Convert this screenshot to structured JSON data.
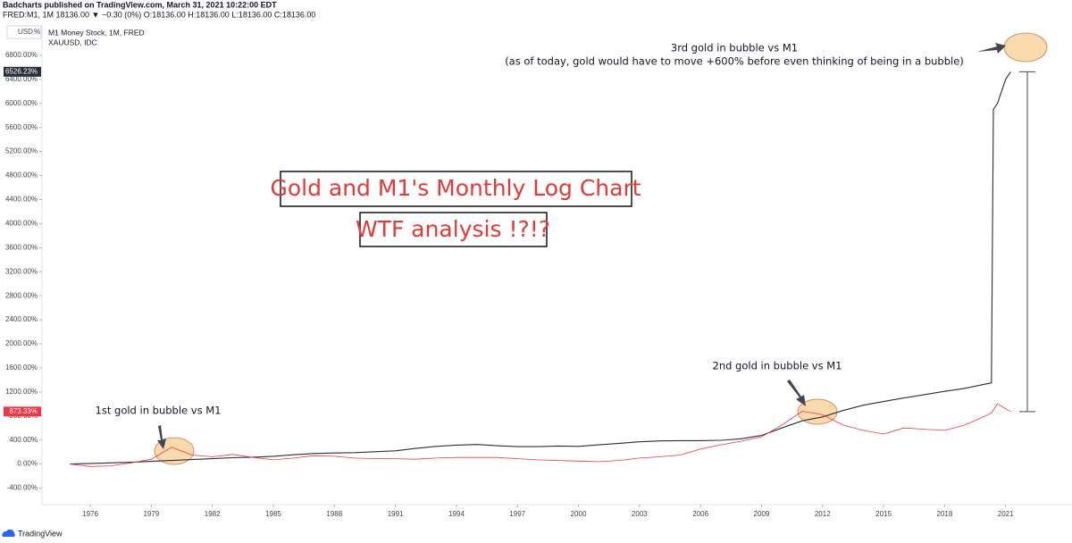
{
  "header": {
    "publisher": "Badcharts published on TradingView.com, March 31, 2021 10:22:00 EDT",
    "symbol_line": "FRED:M1, 1M 18136.00 ▼ −0.30 (0%) O:18136.00 H:18136.00 L:18136.00 C:18136.00",
    "currency": "USD",
    "scale_mode": "%"
  },
  "footer": {
    "brand": "TradingView"
  },
  "chart_data": {
    "type": "line",
    "title": "Gold and M1's Monthly Log Chart",
    "subtitle": "WTF analysis !?!?",
    "annotations": [
      "3rd gold in bubble vs M1",
      "(as of today, gold would have to move +600% before even thinking of being in a bubble)",
      "2nd gold in bubble vs M1",
      "1st gold in bubble vs M1"
    ],
    "x": [
      1975,
      1976,
      1977,
      1978,
      1979,
      1980,
      1981,
      1982,
      1983,
      1984,
      1985,
      1986,
      1987,
      1988,
      1989,
      1990,
      1991,
      1992,
      1993,
      1994,
      1995,
      1996,
      1997,
      1998,
      1999,
      2000,
      2001,
      2002,
      2003,
      2004,
      2005,
      2006,
      2007,
      2008,
      2009,
      2010,
      2011,
      2012,
      2013,
      2014,
      2015,
      2016,
      2017,
      2018,
      2019,
      2020,
      2020.3,
      2020.4,
      2020.6,
      2021,
      2021.25
    ],
    "series": [
      {
        "name": "M1 Money Stock, 1M, FRED",
        "color": "#2a2e39",
        "end_label": "6526.23%",
        "values": [
          0,
          10,
          20,
          30,
          45,
          60,
          75,
          90,
          105,
          115,
          130,
          155,
          175,
          185,
          190,
          205,
          220,
          260,
          295,
          315,
          325,
          305,
          290,
          290,
          300,
          295,
          320,
          345,
          370,
          385,
          390,
          390,
          395,
          420,
          475,
          600,
          720,
          785,
          890,
          980,
          1040,
          1100,
          1155,
          1210,
          1260,
          1330,
          1350,
          5900,
          6000,
          6400,
          6526.23
        ]
      },
      {
        "name": "XAUUSD, IDC",
        "color": "#f23645",
        "end_label": "873.33%",
        "values": [
          0,
          -40,
          -30,
          20,
          80,
          280,
          150,
          120,
          160,
          110,
          70,
          100,
          140,
          130,
          100,
          90,
          90,
          80,
          100,
          110,
          110,
          110,
          90,
          70,
          60,
          50,
          40,
          60,
          100,
          120,
          150,
          250,
          320,
          380,
          450,
          650,
          880,
          820,
          650,
          560,
          500,
          600,
          580,
          560,
          650,
          800,
          850,
          900,
          1000,
          920,
          873.33
        ]
      }
    ],
    "xlim": [
      1974,
      2024
    ],
    "xticks": [
      1976,
      1979,
      1982,
      1985,
      1988,
      1991,
      1994,
      1997,
      2000,
      2003,
      2006,
      2009,
      2012,
      2015,
      2018,
      2021
    ],
    "ylim": [
      -600,
      7200
    ],
    "yticks": [
      {
        "value": -400,
        "label": "-400.00%"
      },
      {
        "value": 0,
        "label": "0.00%"
      },
      {
        "value": 400,
        "label": "400.00%"
      },
      {
        "value": 800,
        "label": "800.00%"
      },
      {
        "value": 1200,
        "label": "1200.00%"
      },
      {
        "value": 1600,
        "label": "1600.00%"
      },
      {
        "value": 2000,
        "label": "2000.00%"
      },
      {
        "value": 2400,
        "label": "2400.00%"
      },
      {
        "value": 2800,
        "label": "2800.00%"
      },
      {
        "value": 3200,
        "label": "3200.00%"
      },
      {
        "value": 3600,
        "label": "3600.00%"
      },
      {
        "value": 4000,
        "label": "4000.00%"
      },
      {
        "value": 4400,
        "label": "4400.00%"
      },
      {
        "value": 4800,
        "label": "4800.00%"
      },
      {
        "value": 5200,
        "label": "5200.00%"
      },
      {
        "value": 5600,
        "label": "5600.00%"
      },
      {
        "value": 6000,
        "label": "6000.00%"
      },
      {
        "value": 6400,
        "label": "6400.00%"
      },
      {
        "value": 6800,
        "label": "6800.00%"
      }
    ],
    "grid": false
  }
}
